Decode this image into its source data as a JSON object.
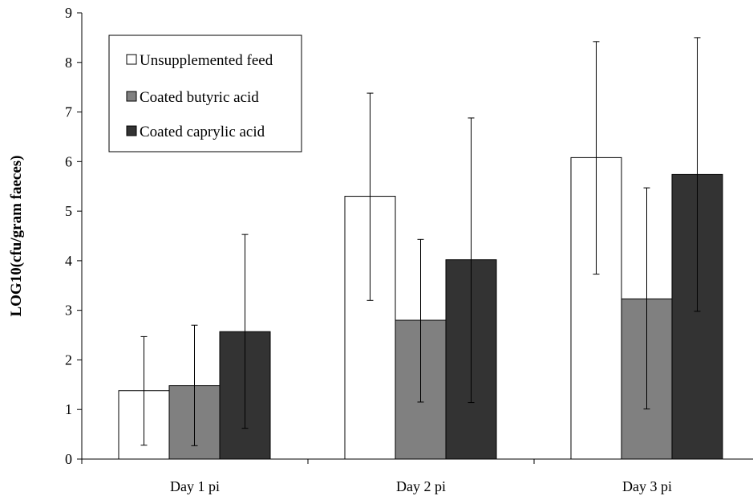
{
  "chart_data": {
    "type": "bar",
    "ylabel": "LOG10(cfu/gram faeces)",
    "ylim": [
      0,
      9
    ],
    "yticks": [
      "0",
      "1",
      "2",
      "3",
      "4",
      "5",
      "6",
      "7",
      "8",
      "9"
    ],
    "categories": [
      "Day 1 pi",
      "Day 2 pi",
      "Day 3 pi"
    ],
    "legend_position": "top-left",
    "grid": false,
    "series": [
      {
        "name": "Unsupplemented feed",
        "color": "#ffffff",
        "values": [
          1.38,
          5.3,
          6.08
        ],
        "error_low": [
          0.28,
          3.2,
          3.73
        ],
        "error_high": [
          2.47,
          7.38,
          8.42
        ]
      },
      {
        "name": "Coated butyric acid",
        "color": "#808080",
        "values": [
          1.48,
          2.8,
          3.23
        ],
        "error_low": [
          0.27,
          1.15,
          1.01
        ],
        "error_high": [
          2.7,
          4.43,
          5.47
        ]
      },
      {
        "name": "Coated caprylic acid",
        "color": "#333333",
        "values": [
          2.57,
          4.02,
          5.74
        ],
        "error_low": [
          0.62,
          1.14,
          2.98
        ],
        "error_high": [
          4.53,
          6.88,
          8.5
        ]
      }
    ]
  }
}
